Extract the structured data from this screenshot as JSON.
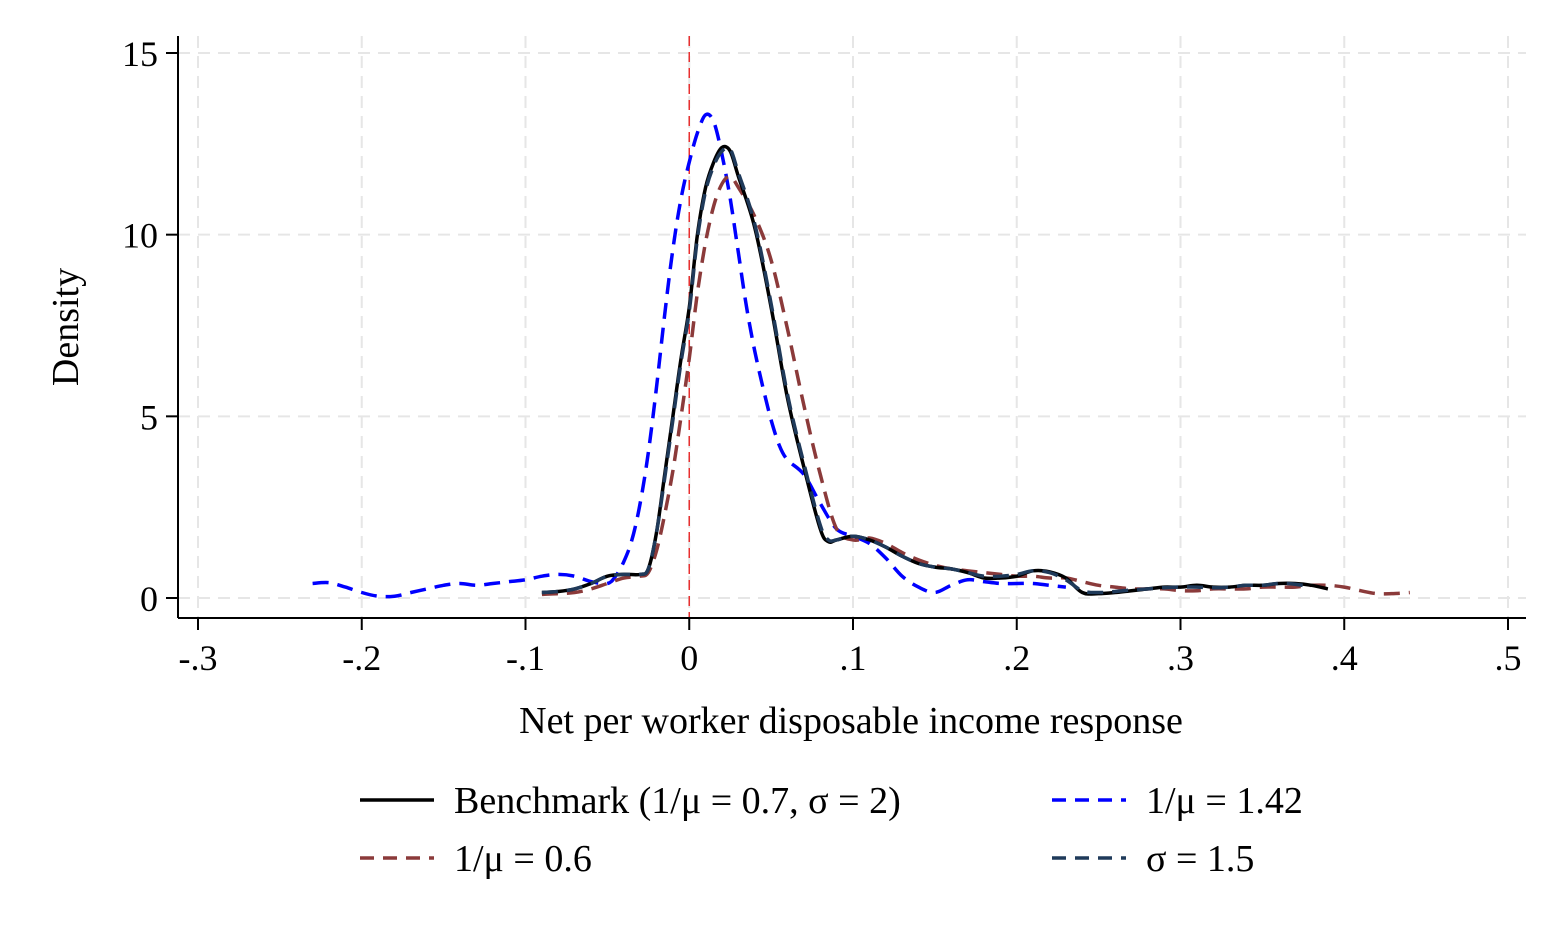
{
  "chart_data": {
    "type": "line",
    "title": "",
    "xlabel": "Net per worker disposable income response",
    "ylabel": "Density",
    "xlim": [
      -0.3,
      0.5
    ],
    "ylim": [
      0,
      15
    ],
    "x_ticks": [
      -0.3,
      -0.2,
      -0.1,
      0,
      0.1,
      0.2,
      0.3,
      0.4,
      0.5
    ],
    "x_tick_labels": [
      "-.3",
      "-.2",
      "-.1",
      "0",
      ".1",
      ".2",
      ".3",
      ".4",
      ".5"
    ],
    "y_ticks": [
      0,
      5,
      10,
      15
    ],
    "y_tick_labels": [
      "0",
      "5",
      "10",
      "15"
    ],
    "grid": true,
    "reference_line": {
      "x": 0,
      "color": "#e83030",
      "style": "dashed"
    },
    "legend_position": "bottom",
    "series": [
      {
        "name": "Benchmark (1/μ = 0.7, σ = 2)",
        "color": "#000000",
        "dash": "solid",
        "points": [
          [
            -0.09,
            0.15
          ],
          [
            -0.08,
            0.18
          ],
          [
            -0.07,
            0.25
          ],
          [
            -0.06,
            0.4
          ],
          [
            -0.05,
            0.6
          ],
          [
            -0.04,
            0.65
          ],
          [
            -0.03,
            0.65
          ],
          [
            -0.025,
            0.8
          ],
          [
            -0.02,
            1.8
          ],
          [
            -0.015,
            3.4
          ],
          [
            -0.01,
            5.0
          ],
          [
            -0.005,
            6.6
          ],
          [
            0,
            8.0
          ],
          [
            0.005,
            10.0
          ],
          [
            0.01,
            11.3
          ],
          [
            0.015,
            12.0
          ],
          [
            0.02,
            12.4
          ],
          [
            0.025,
            12.3
          ],
          [
            0.03,
            11.6
          ],
          [
            0.04,
            10.2
          ],
          [
            0.05,
            8.0
          ],
          [
            0.06,
            5.5
          ],
          [
            0.07,
            3.6
          ],
          [
            0.08,
            1.9
          ],
          [
            0.085,
            1.55
          ],
          [
            0.09,
            1.6
          ],
          [
            0.1,
            1.7
          ],
          [
            0.11,
            1.6
          ],
          [
            0.12,
            1.4
          ],
          [
            0.13,
            1.15
          ],
          [
            0.14,
            0.95
          ],
          [
            0.15,
            0.85
          ],
          [
            0.16,
            0.8
          ],
          [
            0.17,
            0.7
          ],
          [
            0.18,
            0.55
          ],
          [
            0.19,
            0.55
          ],
          [
            0.2,
            0.6
          ],
          [
            0.21,
            0.75
          ],
          [
            0.22,
            0.72
          ],
          [
            0.23,
            0.55
          ],
          [
            0.24,
            0.15
          ],
          [
            0.25,
            0.12
          ],
          [
            0.26,
            0.15
          ],
          [
            0.27,
            0.2
          ],
          [
            0.28,
            0.25
          ],
          [
            0.29,
            0.3
          ],
          [
            0.3,
            0.3
          ],
          [
            0.31,
            0.35
          ],
          [
            0.32,
            0.3
          ],
          [
            0.33,
            0.3
          ],
          [
            0.34,
            0.35
          ],
          [
            0.35,
            0.35
          ],
          [
            0.36,
            0.4
          ],
          [
            0.37,
            0.4
          ],
          [
            0.38,
            0.35
          ],
          [
            0.39,
            0.25
          ]
        ]
      },
      {
        "name": "1/μ = 1.42",
        "color": "#0000ff",
        "dash": "dashed",
        "points": [
          [
            -0.23,
            0.4
          ],
          [
            -0.22,
            0.42
          ],
          [
            -0.21,
            0.3
          ],
          [
            -0.2,
            0.15
          ],
          [
            -0.19,
            0.05
          ],
          [
            -0.18,
            0.05
          ],
          [
            -0.17,
            0.15
          ],
          [
            -0.16,
            0.25
          ],
          [
            -0.15,
            0.35
          ],
          [
            -0.14,
            0.4
          ],
          [
            -0.13,
            0.35
          ],
          [
            -0.12,
            0.4
          ],
          [
            -0.11,
            0.45
          ],
          [
            -0.1,
            0.5
          ],
          [
            -0.09,
            0.6
          ],
          [
            -0.08,
            0.65
          ],
          [
            -0.07,
            0.6
          ],
          [
            -0.06,
            0.45
          ],
          [
            -0.05,
            0.4
          ],
          [
            -0.045,
            0.6
          ],
          [
            -0.04,
            1.0
          ],
          [
            -0.035,
            1.6
          ],
          [
            -0.03,
            2.6
          ],
          [
            -0.025,
            4.0
          ],
          [
            -0.02,
            5.8
          ],
          [
            -0.015,
            7.8
          ],
          [
            -0.01,
            9.6
          ],
          [
            -0.005,
            11.0
          ],
          [
            0,
            12.0
          ],
          [
            0.005,
            12.8
          ],
          [
            0.01,
            13.3
          ],
          [
            0.015,
            13.1
          ],
          [
            0.02,
            12.2
          ],
          [
            0.025,
            11.0
          ],
          [
            0.03,
            9.5
          ],
          [
            0.035,
            8.0
          ],
          [
            0.04,
            6.8
          ],
          [
            0.045,
            5.8
          ],
          [
            0.05,
            4.9
          ],
          [
            0.055,
            4.2
          ],
          [
            0.06,
            3.8
          ],
          [
            0.07,
            3.4
          ],
          [
            0.08,
            2.6
          ],
          [
            0.09,
            1.9
          ],
          [
            0.1,
            1.7
          ],
          [
            0.11,
            1.5
          ],
          [
            0.12,
            1.1
          ],
          [
            0.13,
            0.6
          ],
          [
            0.14,
            0.3
          ],
          [
            0.15,
            0.15
          ],
          [
            0.16,
            0.35
          ],
          [
            0.17,
            0.5
          ],
          [
            0.18,
            0.45
          ],
          [
            0.19,
            0.4
          ],
          [
            0.2,
            0.4
          ],
          [
            0.21,
            0.4
          ],
          [
            0.22,
            0.35
          ],
          [
            0.23,
            0.3
          ]
        ]
      },
      {
        "name": "1/μ = 0.6",
        "color": "#8b3a3a",
        "dash": "dashed",
        "points": [
          [
            -0.09,
            0.1
          ],
          [
            -0.08,
            0.12
          ],
          [
            -0.07,
            0.15
          ],
          [
            -0.06,
            0.25
          ],
          [
            -0.05,
            0.4
          ],
          [
            -0.04,
            0.55
          ],
          [
            -0.03,
            0.6
          ],
          [
            -0.025,
            0.7
          ],
          [
            -0.02,
            1.3
          ],
          [
            -0.015,
            2.3
          ],
          [
            -0.01,
            3.5
          ],
          [
            -0.005,
            5.0
          ],
          [
            0,
            6.6
          ],
          [
            0.005,
            8.4
          ],
          [
            0.01,
            9.8
          ],
          [
            0.015,
            10.8
          ],
          [
            0.02,
            11.4
          ],
          [
            0.025,
            11.6
          ],
          [
            0.03,
            11.3
          ],
          [
            0.04,
            10.5
          ],
          [
            0.05,
            9.3
          ],
          [
            0.06,
            7.4
          ],
          [
            0.07,
            5.3
          ],
          [
            0.08,
            3.4
          ],
          [
            0.09,
            1.9
          ],
          [
            0.1,
            1.6
          ],
          [
            0.11,
            1.65
          ],
          [
            0.12,
            1.5
          ],
          [
            0.13,
            1.25
          ],
          [
            0.14,
            1.05
          ],
          [
            0.15,
            0.9
          ],
          [
            0.16,
            0.8
          ],
          [
            0.17,
            0.75
          ],
          [
            0.18,
            0.7
          ],
          [
            0.19,
            0.65
          ],
          [
            0.2,
            0.6
          ],
          [
            0.21,
            0.6
          ],
          [
            0.22,
            0.55
          ],
          [
            0.23,
            0.55
          ],
          [
            0.24,
            0.45
          ],
          [
            0.25,
            0.35
          ],
          [
            0.26,
            0.3
          ],
          [
            0.27,
            0.25
          ],
          [
            0.28,
            0.25
          ],
          [
            0.29,
            0.25
          ],
          [
            0.3,
            0.2
          ],
          [
            0.31,
            0.2
          ],
          [
            0.32,
            0.25
          ],
          [
            0.33,
            0.25
          ],
          [
            0.34,
            0.25
          ],
          [
            0.35,
            0.3
          ],
          [
            0.36,
            0.3
          ],
          [
            0.37,
            0.3
          ],
          [
            0.38,
            0.35
          ],
          [
            0.39,
            0.35
          ],
          [
            0.4,
            0.3
          ],
          [
            0.41,
            0.2
          ],
          [
            0.42,
            0.12
          ],
          [
            0.43,
            0.12
          ],
          [
            0.44,
            0.15
          ]
        ]
      },
      {
        "name": "σ = 1.5",
        "color": "#1f3a5a",
        "dash": "dashed",
        "points": [
          [
            -0.09,
            0.15
          ],
          [
            -0.08,
            0.18
          ],
          [
            -0.07,
            0.25
          ],
          [
            -0.06,
            0.4
          ],
          [
            -0.05,
            0.6
          ],
          [
            -0.04,
            0.65
          ],
          [
            -0.03,
            0.65
          ],
          [
            -0.025,
            0.8
          ],
          [
            -0.02,
            1.8
          ],
          [
            -0.015,
            3.3
          ],
          [
            -0.01,
            4.9
          ],
          [
            -0.005,
            6.5
          ],
          [
            0,
            7.9
          ],
          [
            0.005,
            9.9
          ],
          [
            0.01,
            11.2
          ],
          [
            0.015,
            11.9
          ],
          [
            0.02,
            12.3
          ],
          [
            0.025,
            12.35
          ],
          [
            0.03,
            11.7
          ],
          [
            0.04,
            10.3
          ],
          [
            0.05,
            8.1
          ],
          [
            0.06,
            5.6
          ],
          [
            0.07,
            3.7
          ],
          [
            0.08,
            2.0
          ],
          [
            0.085,
            1.6
          ],
          [
            0.09,
            1.6
          ],
          [
            0.1,
            1.7
          ],
          [
            0.11,
            1.6
          ],
          [
            0.12,
            1.4
          ],
          [
            0.13,
            1.15
          ],
          [
            0.14,
            0.95
          ],
          [
            0.15,
            0.85
          ],
          [
            0.16,
            0.8
          ],
          [
            0.17,
            0.7
          ],
          [
            0.18,
            0.6
          ],
          [
            0.19,
            0.6
          ],
          [
            0.2,
            0.65
          ],
          [
            0.21,
            0.75
          ],
          [
            0.22,
            0.7
          ],
          [
            0.23,
            0.5
          ],
          [
            0.24,
            0.2
          ],
          [
            0.25,
            0.15
          ],
          [
            0.26,
            0.18
          ],
          [
            0.27,
            0.22
          ],
          [
            0.28,
            0.25
          ],
          [
            0.29,
            0.28
          ],
          [
            0.3,
            0.3
          ],
          [
            0.31,
            0.3
          ],
          [
            0.32,
            0.28
          ],
          [
            0.33,
            0.3
          ],
          [
            0.34,
            0.35
          ],
          [
            0.35,
            0.35
          ],
          [
            0.36,
            0.4
          ],
          [
            0.37,
            0.38
          ],
          [
            0.38,
            0.3
          ]
        ]
      }
    ],
    "legend": [
      {
        "label": "Benchmark (1/μ = 0.7, σ = 2)",
        "series": 0
      },
      {
        "label": "1/μ = 1.42",
        "series": 1
      },
      {
        "label": "1/μ = 0.6",
        "series": 2
      },
      {
        "label": "σ = 1.5",
        "series": 3
      }
    ]
  }
}
